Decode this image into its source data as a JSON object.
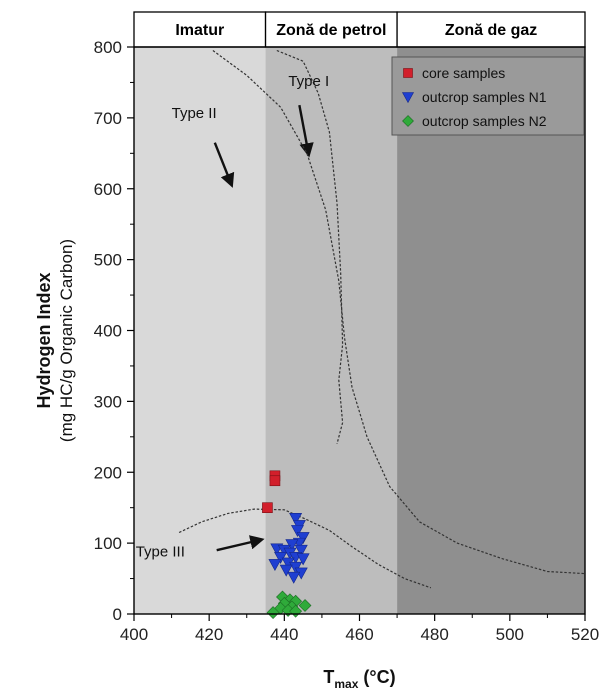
{
  "chart_data": {
    "type": "scatter",
    "zones": [
      {
        "label": "Imatur",
        "x_range": [
          400,
          435
        ],
        "color": "#d9d9d9"
      },
      {
        "label": "Zonă de petrol",
        "x_range": [
          435,
          470
        ],
        "color": "#bdbdbd"
      },
      {
        "label": "Zonă de gaz",
        "x_range": [
          470,
          520
        ],
        "color": "#8f8f8f"
      }
    ],
    "xlabel": "T",
    "xlabel_sub": "max",
    "xlabel_unit": " (°C)",
    "ylabel_line1": "Hydrogen Index",
    "ylabel_line2": "(mg HC/g Organic Carbon)",
    "xlim": [
      400,
      520
    ],
    "ylim": [
      0,
      800
    ],
    "x_ticks": [
      400,
      420,
      440,
      460,
      480,
      500,
      520
    ],
    "y_ticks": [
      0,
      100,
      200,
      300,
      400,
      500,
      600,
      700,
      800
    ],
    "legend_position": "top-right",
    "series": [
      {
        "name": "core samples",
        "marker": "square",
        "color": "#d21f2b",
        "points": [
          [
            437.5,
            195
          ],
          [
            437.5,
            188
          ],
          [
            435.5,
            150
          ]
        ]
      },
      {
        "name": "outcrop samples N1",
        "marker": "triangle-down",
        "color": "#1f3fd1",
        "points": [
          [
            443,
            135
          ],
          [
            444,
            125
          ],
          [
            443.5,
            118
          ],
          [
            445,
            108
          ],
          [
            444,
            100
          ],
          [
            442,
            98
          ],
          [
            444.5,
            90
          ],
          [
            438,
            92
          ],
          [
            440,
            90
          ],
          [
            441.5,
            86
          ],
          [
            443,
            80
          ],
          [
            439,
            80
          ],
          [
            445,
            78
          ],
          [
            441,
            72
          ],
          [
            443,
            66
          ],
          [
            437.5,
            70
          ],
          [
            440.5,
            62
          ],
          [
            444.5,
            58
          ],
          [
            442.5,
            52
          ]
        ]
      },
      {
        "name": "outcrop samples N2",
        "marker": "diamond",
        "color": "#2faa3a",
        "points": [
          [
            439.5,
            24
          ],
          [
            441.5,
            20
          ],
          [
            443,
            18
          ],
          [
            445.5,
            12
          ],
          [
            440,
            15
          ],
          [
            442,
            10
          ],
          [
            439,
            8
          ],
          [
            441,
            5
          ],
          [
            437,
            2
          ],
          [
            443,
            4
          ]
        ]
      }
    ],
    "type_curves": [
      {
        "label": "Type I",
        "label_at": [
          446.5,
          745
        ],
        "arrow_from": [
          444,
          718
        ],
        "arrow_to": [
          446.5,
          648
        ],
        "points": [
          [
            438,
            795
          ],
          [
            445,
            780
          ],
          [
            449,
            735
          ],
          [
            452,
            680
          ],
          [
            454,
            580
          ],
          [
            455,
            480
          ],
          [
            455.5,
            380
          ],
          [
            454.5,
            330
          ],
          [
            455.5,
            270
          ],
          [
            454,
            240
          ]
        ]
      },
      {
        "label": "Type II",
        "label_at": [
          416,
          700
        ],
        "arrow_from": [
          421.5,
          665
        ],
        "arrow_to": [
          426,
          605
        ],
        "points": [
          [
            421,
            795
          ],
          [
            430,
            760
          ],
          [
            439,
            715
          ],
          [
            446,
            650
          ],
          [
            451,
            570
          ],
          [
            454.5,
            470
          ],
          [
            456,
            390
          ],
          [
            458,
            320
          ],
          [
            462,
            250
          ],
          [
            468,
            180
          ],
          [
            476,
            130
          ],
          [
            486,
            100
          ],
          [
            498,
            78
          ],
          [
            510,
            60
          ],
          [
            520,
            57
          ]
        ]
      },
      {
        "label": "Type III",
        "label_at": [
          407,
          81
        ],
        "arrow_from": [
          422,
          90
        ],
        "arrow_to": [
          434,
          105
        ],
        "points": [
          [
            412,
            115
          ],
          [
            418,
            130
          ],
          [
            425,
            142
          ],
          [
            432,
            148
          ],
          [
            440,
            147
          ],
          [
            446,
            133
          ],
          [
            452,
            118
          ],
          [
            458,
            95
          ],
          [
            465,
            70
          ],
          [
            472,
            50
          ],
          [
            479,
            37
          ]
        ]
      }
    ]
  }
}
